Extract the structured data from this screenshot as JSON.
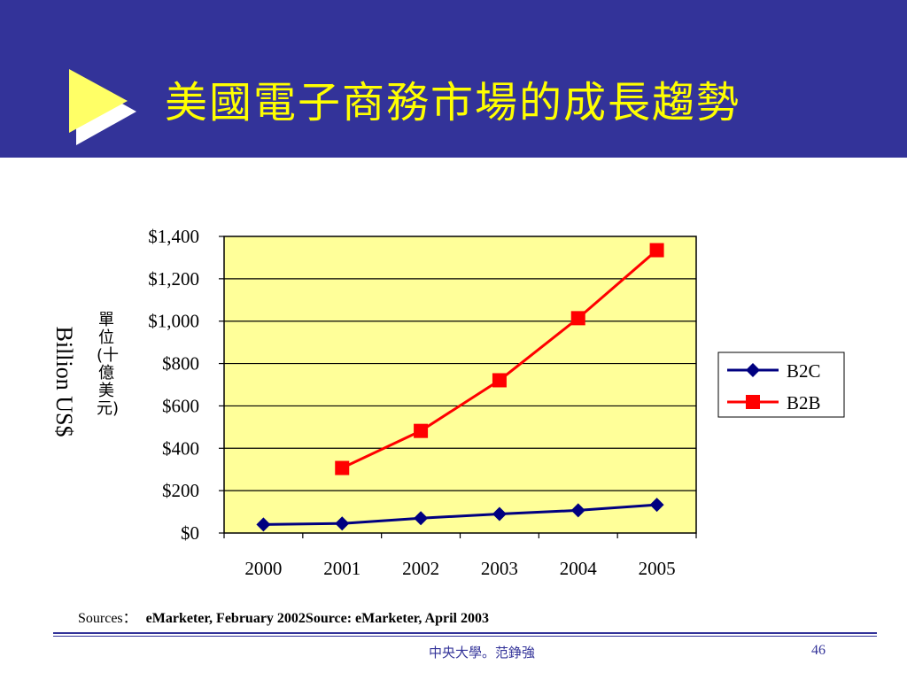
{
  "slide": {
    "title": "美國電子商務市場的成長趨勢",
    "sources_label": "Sources：",
    "sources_text": "eMarketer, February 2002Source: eMarketer, April 2003",
    "footer_center": "中央大學。范錚強",
    "page_number": "46",
    "colors": {
      "header": "#333399",
      "title": "#ffff00",
      "plot_bg": "#ffff99"
    }
  },
  "chart_data": {
    "type": "line",
    "title": "",
    "xlabel": "",
    "ylabel": "Billion US$",
    "ylabel_secondary": "單位(十億美元)",
    "categories": [
      "2000",
      "2001",
      "2002",
      "2003",
      "2004",
      "2005"
    ],
    "ylim": [
      0,
      1400
    ],
    "yticks": [
      0,
      200,
      400,
      600,
      800,
      1000,
      1200,
      1400
    ],
    "ytick_labels": [
      "$0",
      "$200",
      "$400",
      "$600",
      "$800",
      "$1,000",
      "$1,200",
      "$1,400"
    ],
    "grid": true,
    "legend_position": "right",
    "series": [
      {
        "name": "B2C",
        "color": "#000080",
        "marker": "diamond",
        "values": [
          40,
          45,
          70,
          90,
          107,
          133
        ]
      },
      {
        "name": "B2B",
        "color": "#ff0000",
        "marker": "square",
        "values": [
          null,
          307,
          482,
          721,
          1014,
          1335
        ]
      }
    ]
  }
}
